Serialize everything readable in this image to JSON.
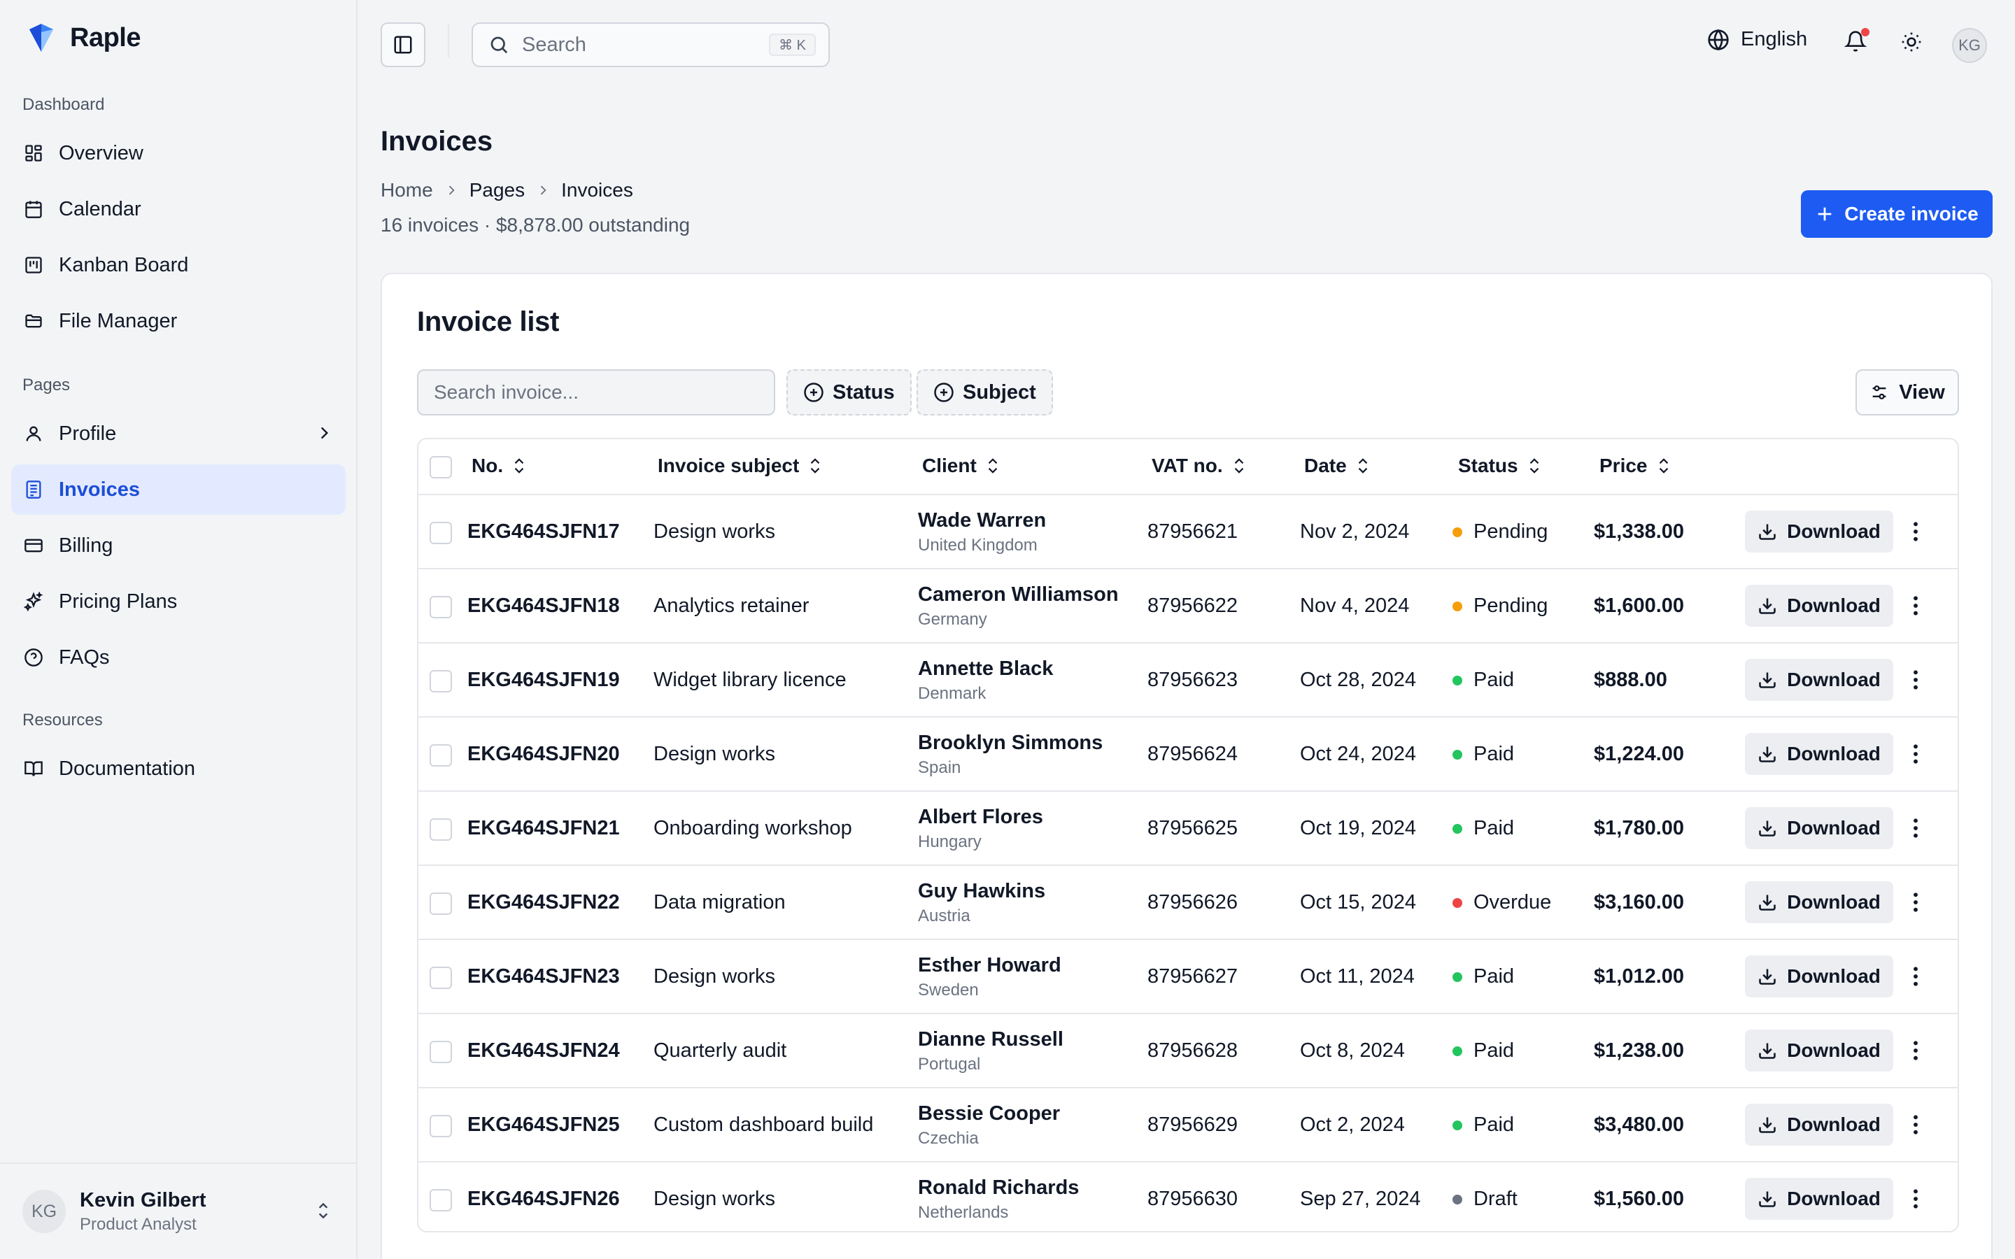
{
  "app": {
    "name": "Raple"
  },
  "sidebar": {
    "sections": {
      "dashboard": "Dashboard",
      "pages": "Pages",
      "resources": "Resources"
    },
    "items": {
      "overview": "Overview",
      "calendar": "Calendar",
      "kanban": "Kanban Board",
      "files": "File Manager",
      "profile": "Profile",
      "invoices": "Invoices",
      "billing": "Billing",
      "pricing": "Pricing Plans",
      "faqs": "FAQs",
      "docs": "Documentation"
    },
    "active_item": "invoices",
    "user": {
      "initials": "KG",
      "name": "Kevin Gilbert",
      "role": "Product Analyst"
    }
  },
  "topbar": {
    "search_placeholder": "Search",
    "search_shortcut": "⌘ K",
    "language": "English",
    "avatar_initials": "KG",
    "notification_dot": true
  },
  "page": {
    "title": "Invoices",
    "breadcrumb": [
      "Home",
      "Pages",
      "Invoices"
    ],
    "subtitle": "16 invoices · $8,878.00 outstanding",
    "create_button": "Create invoice"
  },
  "invoice_list": {
    "title": "Invoice list",
    "search_placeholder": "Search invoice...",
    "filters": {
      "status": "Status",
      "subject": "Subject"
    },
    "view_button": "View",
    "columns": {
      "no": "No.",
      "subject": "Invoice subject",
      "client": "Client",
      "vat": "VAT no.",
      "date": "Date",
      "status": "Status",
      "price": "Price"
    },
    "download_label": "Download",
    "rows": [
      {
        "no": "EKG464SJFN17",
        "subject": "Design works",
        "client": "Wade Warren",
        "country": "United Kingdom",
        "vat": "87956621",
        "date": "Nov 2, 2024",
        "status": "Pending",
        "price": "$1,338.00"
      },
      {
        "no": "EKG464SJFN18",
        "subject": "Analytics retainer",
        "client": "Cameron Williamson",
        "country": "Germany",
        "vat": "87956622",
        "date": "Nov 4, 2024",
        "status": "Pending",
        "price": "$1,600.00"
      },
      {
        "no": "EKG464SJFN19",
        "subject": "Widget library licence",
        "client": "Annette Black",
        "country": "Denmark",
        "vat": "87956623",
        "date": "Oct 28, 2024",
        "status": "Paid",
        "price": "$888.00"
      },
      {
        "no": "EKG464SJFN20",
        "subject": "Design works",
        "client": "Brooklyn Simmons",
        "country": "Spain",
        "vat": "87956624",
        "date": "Oct 24, 2024",
        "status": "Paid",
        "price": "$1,224.00"
      },
      {
        "no": "EKG464SJFN21",
        "subject": "Onboarding workshop",
        "client": "Albert Flores",
        "country": "Hungary",
        "vat": "87956625",
        "date": "Oct 19, 2024",
        "status": "Paid",
        "price": "$1,780.00"
      },
      {
        "no": "EKG464SJFN22",
        "subject": "Data migration",
        "client": "Guy Hawkins",
        "country": "Austria",
        "vat": "87956626",
        "date": "Oct 15, 2024",
        "status": "Overdue",
        "price": "$3,160.00"
      },
      {
        "no": "EKG464SJFN23",
        "subject": "Design works",
        "client": "Esther Howard",
        "country": "Sweden",
        "vat": "87956627",
        "date": "Oct 11, 2024",
        "status": "Paid",
        "price": "$1,012.00"
      },
      {
        "no": "EKG464SJFN24",
        "subject": "Quarterly audit",
        "client": "Dianne Russell",
        "country": "Portugal",
        "vat": "87956628",
        "date": "Oct 8, 2024",
        "status": "Paid",
        "price": "$1,238.00"
      },
      {
        "no": "EKG464SJFN25",
        "subject": "Custom dashboard build",
        "client": "Bessie Cooper",
        "country": "Czechia",
        "vat": "87956629",
        "date": "Oct 2, 2024",
        "status": "Paid",
        "price": "$3,480.00"
      },
      {
        "no": "EKG464SJFN26",
        "subject": "Design works",
        "client": "Ronald Richards",
        "country": "Netherlands",
        "vat": "87956630",
        "date": "Sep 27, 2024",
        "status": "Draft",
        "price": "$1,560.00"
      }
    ]
  },
  "colors": {
    "accent": "#1d5bf2",
    "active_bg": "#e3eaff",
    "status_pending": "#f59e0b",
    "status_paid": "#22c55e",
    "status_overdue": "#ef4444",
    "status_draft": "#6b7280"
  },
  "icons": {
    "logo": "raple-logo-icon",
    "overview": "grid-icon",
    "calendar": "calendar-icon",
    "kanban": "kanban-icon",
    "files": "folder-icon",
    "profile": "user-icon",
    "invoices": "document-icon",
    "billing": "credit-card-icon",
    "pricing": "sparkles-icon",
    "faqs": "help-circle-icon",
    "docs": "book-icon"
  }
}
